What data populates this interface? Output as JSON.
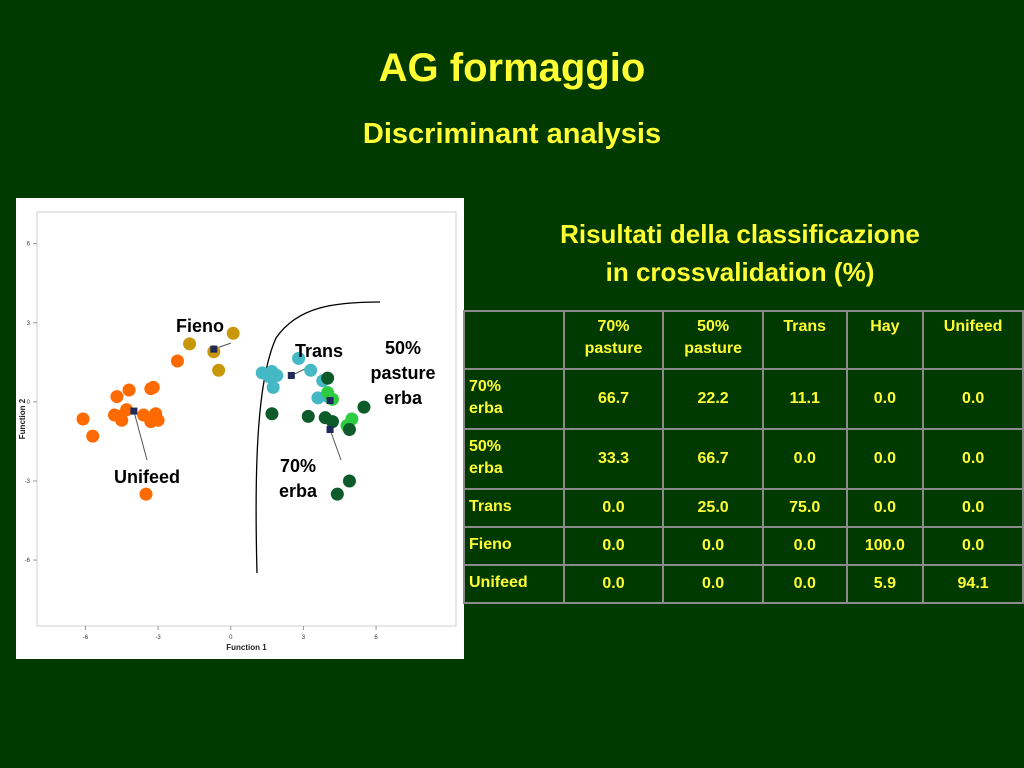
{
  "slide": {
    "title": "AG formaggio",
    "subtitle": "Discriminant analysis"
  },
  "results": {
    "heading_line1": "Risultati della classificazione",
    "heading_line2": "in crossvalidation (%)",
    "columns": [
      "",
      "70%\npasture",
      "50%\npasture",
      "Trans",
      "Hay",
      "Unifeed"
    ],
    "rows": [
      {
        "label": "70%\nerba",
        "values": [
          "66.7",
          "22.2",
          "11.1",
          "0.0",
          "0.0"
        ]
      },
      {
        "label": "50%\nerba",
        "values": [
          "33.3",
          "66.7",
          "0.0",
          "0.0",
          "0.0"
        ]
      },
      {
        "label": "Trans",
        "values": [
          "0.0",
          "25.0",
          "75.0",
          "0.0",
          "0.0"
        ]
      },
      {
        "label": "Fieno",
        "values": [
          "0.0",
          "0.0",
          "0.0",
          "100.0",
          "0.0"
        ]
      },
      {
        "label": "Unifeed",
        "values": [
          "0.0",
          "0.0",
          "0.0",
          "5.9",
          "94.1"
        ]
      }
    ]
  },
  "chart_data": {
    "type": "scatter",
    "xlabel": "Function 1",
    "ylabel": "Function 2",
    "xlim": [
      -8,
      9.3
    ],
    "ylim": [
      -8.5,
      7.2
    ],
    "xticks": [
      "-6",
      "-3",
      "0",
      "3",
      "6"
    ],
    "yticks": [
      "-6",
      "-3",
      "0",
      "3",
      "6"
    ],
    "xtick_values": [
      -6,
      -3,
      0,
      3,
      6
    ],
    "ytick_values": [
      -6,
      -3,
      0,
      3,
      6
    ],
    "group_labels": {
      "fieno": "Fieno",
      "trans": "Trans",
      "pasture50": "50%\npasture\nerba",
      "erba70": "70%\nerba",
      "unifeed": "Unifeed"
    },
    "series": [
      {
        "key": "unifeed",
        "color": "#ff6a00",
        "points": [
          [
            -6.1,
            -0.65
          ],
          [
            -5.7,
            -1.3
          ],
          [
            -4.8,
            -0.5
          ],
          [
            -4.7,
            0.2
          ],
          [
            -4.6,
            -0.55
          ],
          [
            -4.5,
            -0.7
          ],
          [
            -4.3,
            -0.3
          ],
          [
            -4.2,
            0.45
          ],
          [
            -3.6,
            -0.5
          ],
          [
            -3.3,
            -0.75
          ],
          [
            -3.3,
            0.5
          ],
          [
            -3.2,
            0.55
          ],
          [
            -3.1,
            -0.45
          ],
          [
            -3.0,
            -0.7
          ],
          [
            -3.5,
            -3.5
          ],
          [
            -2.2,
            1.55
          ]
        ],
        "centroid": [
          -4.0,
          -0.35
        ]
      },
      {
        "key": "fieno",
        "color": "#c9980a",
        "points": [
          [
            -1.7,
            2.2
          ],
          [
            -0.7,
            1.9
          ],
          [
            -0.5,
            1.2
          ],
          [
            0.1,
            2.6
          ]
        ],
        "centroid": [
          -0.7,
          2.0
        ]
      },
      {
        "key": "trans",
        "color": "#44b8c4",
        "points": [
          [
            1.3,
            1.1
          ],
          [
            1.6,
            0.95
          ],
          [
            1.7,
            1.15
          ],
          [
            1.75,
            0.55
          ],
          [
            1.9,
            1.0
          ],
          [
            2.8,
            1.65
          ],
          [
            3.3,
            1.2
          ],
          [
            3.6,
            0.15
          ],
          [
            3.8,
            0.8
          ],
          [
            4.0,
            0.2
          ]
        ],
        "centroid": [
          2.5,
          1.0
        ]
      },
      {
        "key": "pasture50",
        "color": "#2ecc40",
        "points": [
          [
            4.0,
            0.35
          ],
          [
            4.2,
            0.1
          ],
          [
            5.0,
            -0.65
          ],
          [
            4.8,
            -0.9
          ]
        ],
        "centroid": [
          4.1,
          0.05
        ]
      },
      {
        "key": "erba70",
        "color": "#0d5a2a",
        "points": [
          [
            1.7,
            -0.45
          ],
          [
            3.2,
            -0.55
          ],
          [
            3.9,
            -0.6
          ],
          [
            4.2,
            -0.75
          ],
          [
            4.9,
            -1.05
          ],
          [
            5.5,
            -0.2
          ],
          [
            4.9,
            -3.0
          ],
          [
            4.4,
            -3.5
          ],
          [
            4.0,
            0.9
          ]
        ],
        "centroid": [
          4.1,
          -1.05
        ]
      }
    ]
  }
}
